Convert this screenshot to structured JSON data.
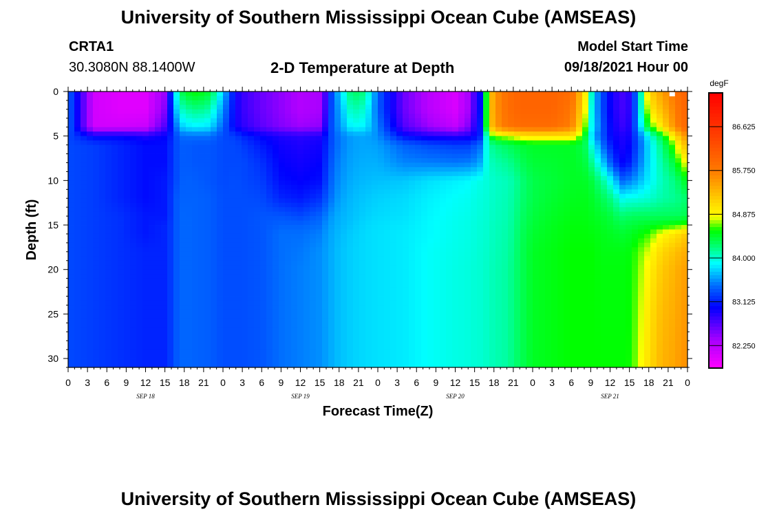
{
  "header": {
    "title": "University of Southern Mississippi Ocean Cube (AMSEAS)",
    "station": "CRTA1",
    "coords": "30.3080N  88.1400W",
    "subtitle": "2-D Temperature at Depth",
    "model_start_label": "Model Start Time",
    "model_start_value": "09/18/2021 Hour 00"
  },
  "footer": {
    "title": "University of Southern Mississippi Ocean Cube (AMSEAS)"
  },
  "chart_data": {
    "type": "heatmap",
    "title": "2-D Temperature at Depth",
    "xlabel": "Forecast Time(Z)",
    "ylabel": "Depth (ft)",
    "x_tick_labels": [
      "0",
      "3",
      "6",
      "9",
      "12",
      "15",
      "18",
      "21",
      "0",
      "3",
      "6",
      "9",
      "12",
      "15",
      "18",
      "21",
      "0",
      "3",
      "6",
      "9",
      "12",
      "15",
      "18",
      "21",
      "0",
      "3",
      "6",
      "9",
      "12",
      "15",
      "18",
      "21",
      "0"
    ],
    "date_labels": [
      {
        "label": "SEP 18",
        "hour": 12
      },
      {
        "label": "SEP 19",
        "hour": 36
      },
      {
        "label": "SEP 20",
        "hour": 60
      },
      {
        "label": "SEP 21",
        "hour": 84
      }
    ],
    "x_range_hours": [
      0,
      96
    ],
    "y_ticks": [
      0,
      5,
      10,
      15,
      20,
      25,
      30
    ],
    "y_range": [
      0,
      31
    ],
    "y_inverted": true,
    "colorbar": {
      "unit": "degF",
      "ticks": [
        "86.625",
        "85.750",
        "84.875",
        "84.000",
        "83.125",
        "82.250"
      ],
      "range": [
        81.8,
        87.3
      ]
    },
    "profile_hours": [
      0,
      4,
      8,
      12,
      15,
      16.5,
      17,
      18,
      20,
      22,
      24,
      26,
      27,
      30,
      33,
      36,
      39,
      40,
      41,
      42,
      44,
      46,
      48,
      52,
      56,
      60,
      62,
      63,
      64,
      65,
      66,
      68,
      69,
      70,
      72,
      75,
      78,
      80,
      81,
      82,
      83,
      84,
      85,
      86,
      87,
      88,
      90,
      92,
      94,
      95,
      96
    ],
    "depth_ft": [
      0,
      2,
      4,
      5,
      6,
      8,
      10,
      12,
      14,
      15,
      16,
      18,
      20,
      25,
      31
    ],
    "temperature_degF": [
      [
        83.45,
        83.45,
        83.45,
        83.3,
        83.3,
        83.3,
        83.3,
        83.3,
        83.3,
        83.3,
        83.3,
        83.3,
        83.3,
        83.3,
        83.3
      ],
      [
        82.1,
        82.1,
        82.1,
        83.0,
        83.25,
        83.25,
        83.25,
        83.25,
        83.25,
        83.25,
        83.25,
        83.25,
        83.25,
        83.25,
        83.25
      ],
      [
        82.0,
        82.0,
        82.1,
        83.0,
        83.15,
        83.15,
        83.15,
        83.15,
        83.2,
        83.2,
        83.2,
        83.2,
        83.2,
        83.2,
        83.2
      ],
      [
        82.0,
        82.0,
        82.15,
        82.9,
        83.05,
        83.05,
        83.05,
        83.05,
        83.1,
        83.1,
        83.1,
        83.15,
        83.15,
        83.15,
        83.15
      ],
      [
        82.4,
        82.5,
        82.7,
        83.0,
        83.05,
        83.05,
        83.1,
        83.1,
        83.1,
        83.15,
        83.15,
        83.15,
        83.15,
        83.15,
        83.15
      ],
      [
        83.7,
        83.5,
        83.3,
        83.2,
        83.25,
        83.25,
        83.25,
        83.3,
        83.3,
        83.3,
        83.3,
        83.3,
        83.3,
        83.3,
        83.3
      ],
      [
        84.1,
        83.9,
        83.6,
        83.4,
        83.35,
        83.35,
        83.35,
        83.4,
        83.4,
        83.4,
        83.4,
        83.4,
        83.4,
        83.4,
        83.4
      ],
      [
        84.45,
        84.1,
        83.8,
        83.45,
        83.38,
        83.38,
        83.4,
        83.4,
        83.42,
        83.42,
        83.42,
        83.42,
        83.42,
        83.42,
        83.42
      ],
      [
        84.55,
        84.2,
        83.85,
        83.45,
        83.35,
        83.35,
        83.38,
        83.4,
        83.4,
        83.4,
        83.4,
        83.4,
        83.4,
        83.4,
        83.4
      ],
      [
        84.4,
        84.1,
        83.8,
        83.45,
        83.35,
        83.35,
        83.35,
        83.38,
        83.38,
        83.38,
        83.38,
        83.38,
        83.38,
        83.38,
        83.38
      ],
      [
        83.75,
        83.55,
        83.4,
        83.3,
        83.3,
        83.3,
        83.3,
        83.32,
        83.32,
        83.32,
        83.32,
        83.32,
        83.32,
        83.32,
        83.32
      ],
      [
        82.95,
        82.95,
        82.95,
        83.25,
        83.3,
        83.3,
        83.32,
        83.32,
        83.32,
        83.32,
        83.32,
        83.32,
        83.32,
        83.32,
        83.32
      ],
      [
        82.8,
        82.8,
        82.85,
        83.15,
        83.25,
        83.3,
        83.3,
        83.32,
        83.32,
        83.32,
        83.32,
        83.32,
        83.32,
        83.32,
        83.32
      ],
      [
        82.6,
        82.6,
        82.65,
        83.0,
        83.1,
        83.2,
        83.25,
        83.3,
        83.35,
        83.35,
        83.35,
        83.35,
        83.35,
        83.35,
        83.35
      ],
      [
        82.45,
        82.45,
        82.5,
        82.9,
        82.95,
        83.0,
        83.05,
        83.15,
        83.35,
        83.4,
        83.45,
        83.45,
        83.45,
        83.45,
        83.45
      ],
      [
        82.3,
        82.3,
        82.4,
        82.85,
        82.9,
        82.95,
        83.0,
        83.1,
        83.3,
        83.4,
        83.45,
        83.48,
        83.5,
        83.5,
        83.5
      ],
      [
        82.35,
        82.35,
        82.45,
        82.9,
        82.95,
        83.0,
        83.05,
        83.2,
        83.4,
        83.45,
        83.5,
        83.55,
        83.55,
        83.55,
        83.55
      ],
      [
        82.8,
        82.85,
        82.95,
        83.1,
        83.15,
        83.2,
        83.25,
        83.35,
        83.5,
        83.55,
        83.58,
        83.6,
        83.6,
        83.6,
        83.6
      ],
      [
        83.4,
        83.4,
        83.4,
        83.35,
        83.35,
        83.4,
        83.45,
        83.5,
        83.6,
        83.62,
        83.64,
        83.65,
        83.65,
        83.65,
        83.65
      ],
      [
        83.7,
        83.6,
        83.55,
        83.48,
        83.48,
        83.52,
        83.55,
        83.6,
        83.65,
        83.66,
        83.68,
        83.7,
        83.7,
        83.7,
        83.7
      ],
      [
        84.3,
        84.1,
        83.9,
        83.6,
        83.6,
        83.62,
        83.65,
        83.68,
        83.7,
        83.72,
        83.74,
        83.75,
        83.75,
        83.75,
        83.75
      ],
      [
        84.2,
        84.0,
        83.85,
        83.62,
        83.62,
        83.65,
        83.68,
        83.72,
        83.75,
        83.77,
        83.78,
        83.78,
        83.78,
        83.78,
        83.78
      ],
      [
        83.4,
        83.4,
        83.5,
        83.55,
        83.6,
        83.65,
        83.7,
        83.75,
        83.78,
        83.8,
        83.8,
        83.8,
        83.8,
        83.8,
        83.8
      ],
      [
        82.6,
        82.6,
        82.7,
        83.05,
        83.4,
        83.52,
        83.72,
        83.78,
        83.8,
        83.82,
        83.83,
        83.83,
        83.83,
        83.83,
        83.83
      ],
      [
        82.25,
        82.25,
        82.4,
        82.9,
        83.3,
        83.5,
        83.8,
        83.85,
        83.87,
        83.88,
        83.88,
        83.9,
        83.9,
        83.9,
        83.9
      ],
      [
        82.05,
        82.05,
        82.2,
        82.85,
        83.25,
        83.48,
        83.85,
        83.9,
        83.92,
        83.93,
        83.93,
        83.94,
        83.95,
        83.95,
        83.95
      ],
      [
        82.35,
        82.35,
        82.5,
        82.9,
        83.25,
        83.5,
        83.88,
        83.92,
        83.94,
        83.95,
        83.95,
        83.96,
        83.97,
        83.97,
        83.97
      ],
      [
        82.75,
        82.75,
        82.85,
        83.0,
        83.35,
        83.55,
        83.92,
        83.95,
        83.96,
        83.97,
        83.97,
        83.98,
        83.99,
        83.99,
        83.99
      ],
      [
        83.1,
        83.1,
        83.15,
        83.15,
        83.45,
        83.65,
        83.95,
        83.97,
        83.98,
        83.99,
        83.99,
        84.0,
        84.0,
        84.0,
        84.0
      ],
      [
        84.8,
        84.8,
        84.8,
        84.2,
        84.05,
        84.0,
        83.98,
        83.99,
        84.0,
        84.01,
        84.01,
        84.02,
        84.03,
        84.03,
        84.03
      ],
      [
        85.55,
        85.55,
        85.5,
        84.7,
        84.2,
        84.08,
        84.02,
        84.03,
        84.04,
        84.05,
        84.05,
        84.06,
        84.07,
        84.07,
        84.07
      ],
      [
        85.85,
        85.85,
        85.8,
        84.8,
        84.3,
        84.15,
        84.06,
        84.07,
        84.08,
        84.09,
        84.1,
        84.11,
        84.12,
        84.12,
        84.12
      ],
      [
        85.95,
        85.95,
        85.85,
        84.85,
        84.35,
        84.2,
        84.1,
        84.12,
        84.14,
        84.15,
        84.16,
        84.18,
        84.2,
        84.2,
        84.2
      ],
      [
        86.0,
        86.0,
        85.9,
        84.95,
        84.4,
        84.3,
        84.2,
        84.22,
        84.25,
        84.27,
        84.29,
        84.3,
        84.3,
        84.3,
        84.3
      ],
      [
        86.0,
        86.0,
        85.9,
        85.0,
        84.45,
        84.4,
        84.35,
        84.35,
        84.38,
        84.4,
        84.42,
        84.45,
        84.45,
        84.45,
        84.45
      ],
      [
        86.0,
        86.0,
        85.9,
        85.0,
        84.45,
        84.42,
        84.4,
        84.42,
        84.45,
        84.47,
        84.48,
        84.5,
        84.5,
        84.5,
        84.5
      ],
      [
        85.9,
        85.8,
        85.7,
        85.0,
        84.45,
        84.45,
        84.45,
        84.47,
        84.5,
        84.52,
        84.53,
        84.55,
        84.55,
        84.55,
        84.55
      ],
      [
        85.1,
        85.0,
        84.8,
        84.5,
        84.35,
        84.4,
        84.45,
        84.48,
        84.5,
        84.52,
        84.53,
        84.55,
        84.55,
        84.55,
        84.55
      ],
      [
        84.1,
        84.0,
        83.95,
        83.85,
        84.0,
        84.2,
        84.4,
        84.45,
        84.48,
        84.5,
        84.52,
        84.55,
        84.55,
        84.55,
        84.55
      ],
      [
        83.55,
        83.55,
        83.6,
        83.5,
        83.7,
        83.95,
        84.25,
        84.38,
        84.45,
        84.48,
        84.5,
        84.52,
        84.53,
        84.54,
        84.55
      ],
      [
        83.25,
        83.25,
        83.3,
        83.3,
        83.4,
        83.7,
        84.1,
        84.3,
        84.42,
        84.45,
        84.48,
        84.5,
        84.52,
        84.53,
        84.55
      ],
      [
        83.0,
        83.0,
        83.05,
        83.05,
        83.15,
        83.4,
        83.9,
        84.2,
        84.38,
        84.42,
        84.46,
        84.5,
        84.52,
        84.53,
        84.55
      ],
      [
        82.85,
        82.85,
        82.9,
        82.95,
        83.0,
        83.15,
        83.65,
        84.05,
        84.3,
        84.38,
        84.44,
        84.5,
        84.52,
        84.53,
        84.55
      ],
      [
        82.75,
        82.75,
        82.8,
        82.9,
        82.92,
        83.0,
        83.4,
        83.9,
        84.25,
        84.35,
        84.42,
        84.5,
        84.52,
        84.53,
        84.55
      ],
      [
        82.85,
        82.85,
        82.9,
        82.95,
        83.0,
        83.1,
        83.5,
        83.95,
        84.28,
        84.38,
        84.45,
        84.52,
        84.54,
        84.55,
        84.56
      ],
      [
        83.4,
        83.4,
        83.4,
        83.3,
        83.25,
        83.35,
        83.6,
        83.95,
        84.3,
        84.4,
        84.5,
        84.6,
        84.62,
        84.65,
        84.68
      ],
      [
        85.1,
        84.9,
        84.5,
        83.9,
        83.8,
        83.8,
        83.85,
        84.0,
        84.3,
        84.45,
        84.6,
        84.8,
        84.9,
        85.0,
        85.05
      ],
      [
        85.5,
        85.3,
        85.0,
        84.4,
        84.2,
        84.1,
        84.05,
        84.1,
        84.3,
        84.5,
        84.85,
        85.1,
        85.2,
        85.3,
        85.35
      ],
      [
        85.8,
        85.7,
        85.6,
        85.0,
        84.7,
        84.4,
        84.2,
        84.15,
        84.3,
        84.55,
        85.0,
        85.25,
        85.35,
        85.4,
        85.45
      ],
      [
        85.95,
        85.9,
        85.85,
        85.4,
        85.1,
        84.7,
        84.35,
        84.2,
        84.3,
        84.6,
        85.1,
        85.35,
        85.45,
        85.5,
        85.55
      ],
      [
        86.0,
        86.0,
        85.95,
        85.6,
        85.3,
        84.9,
        84.5,
        84.25,
        84.35,
        84.65,
        85.2,
        85.4,
        85.5,
        85.55,
        85.6
      ]
    ]
  }
}
